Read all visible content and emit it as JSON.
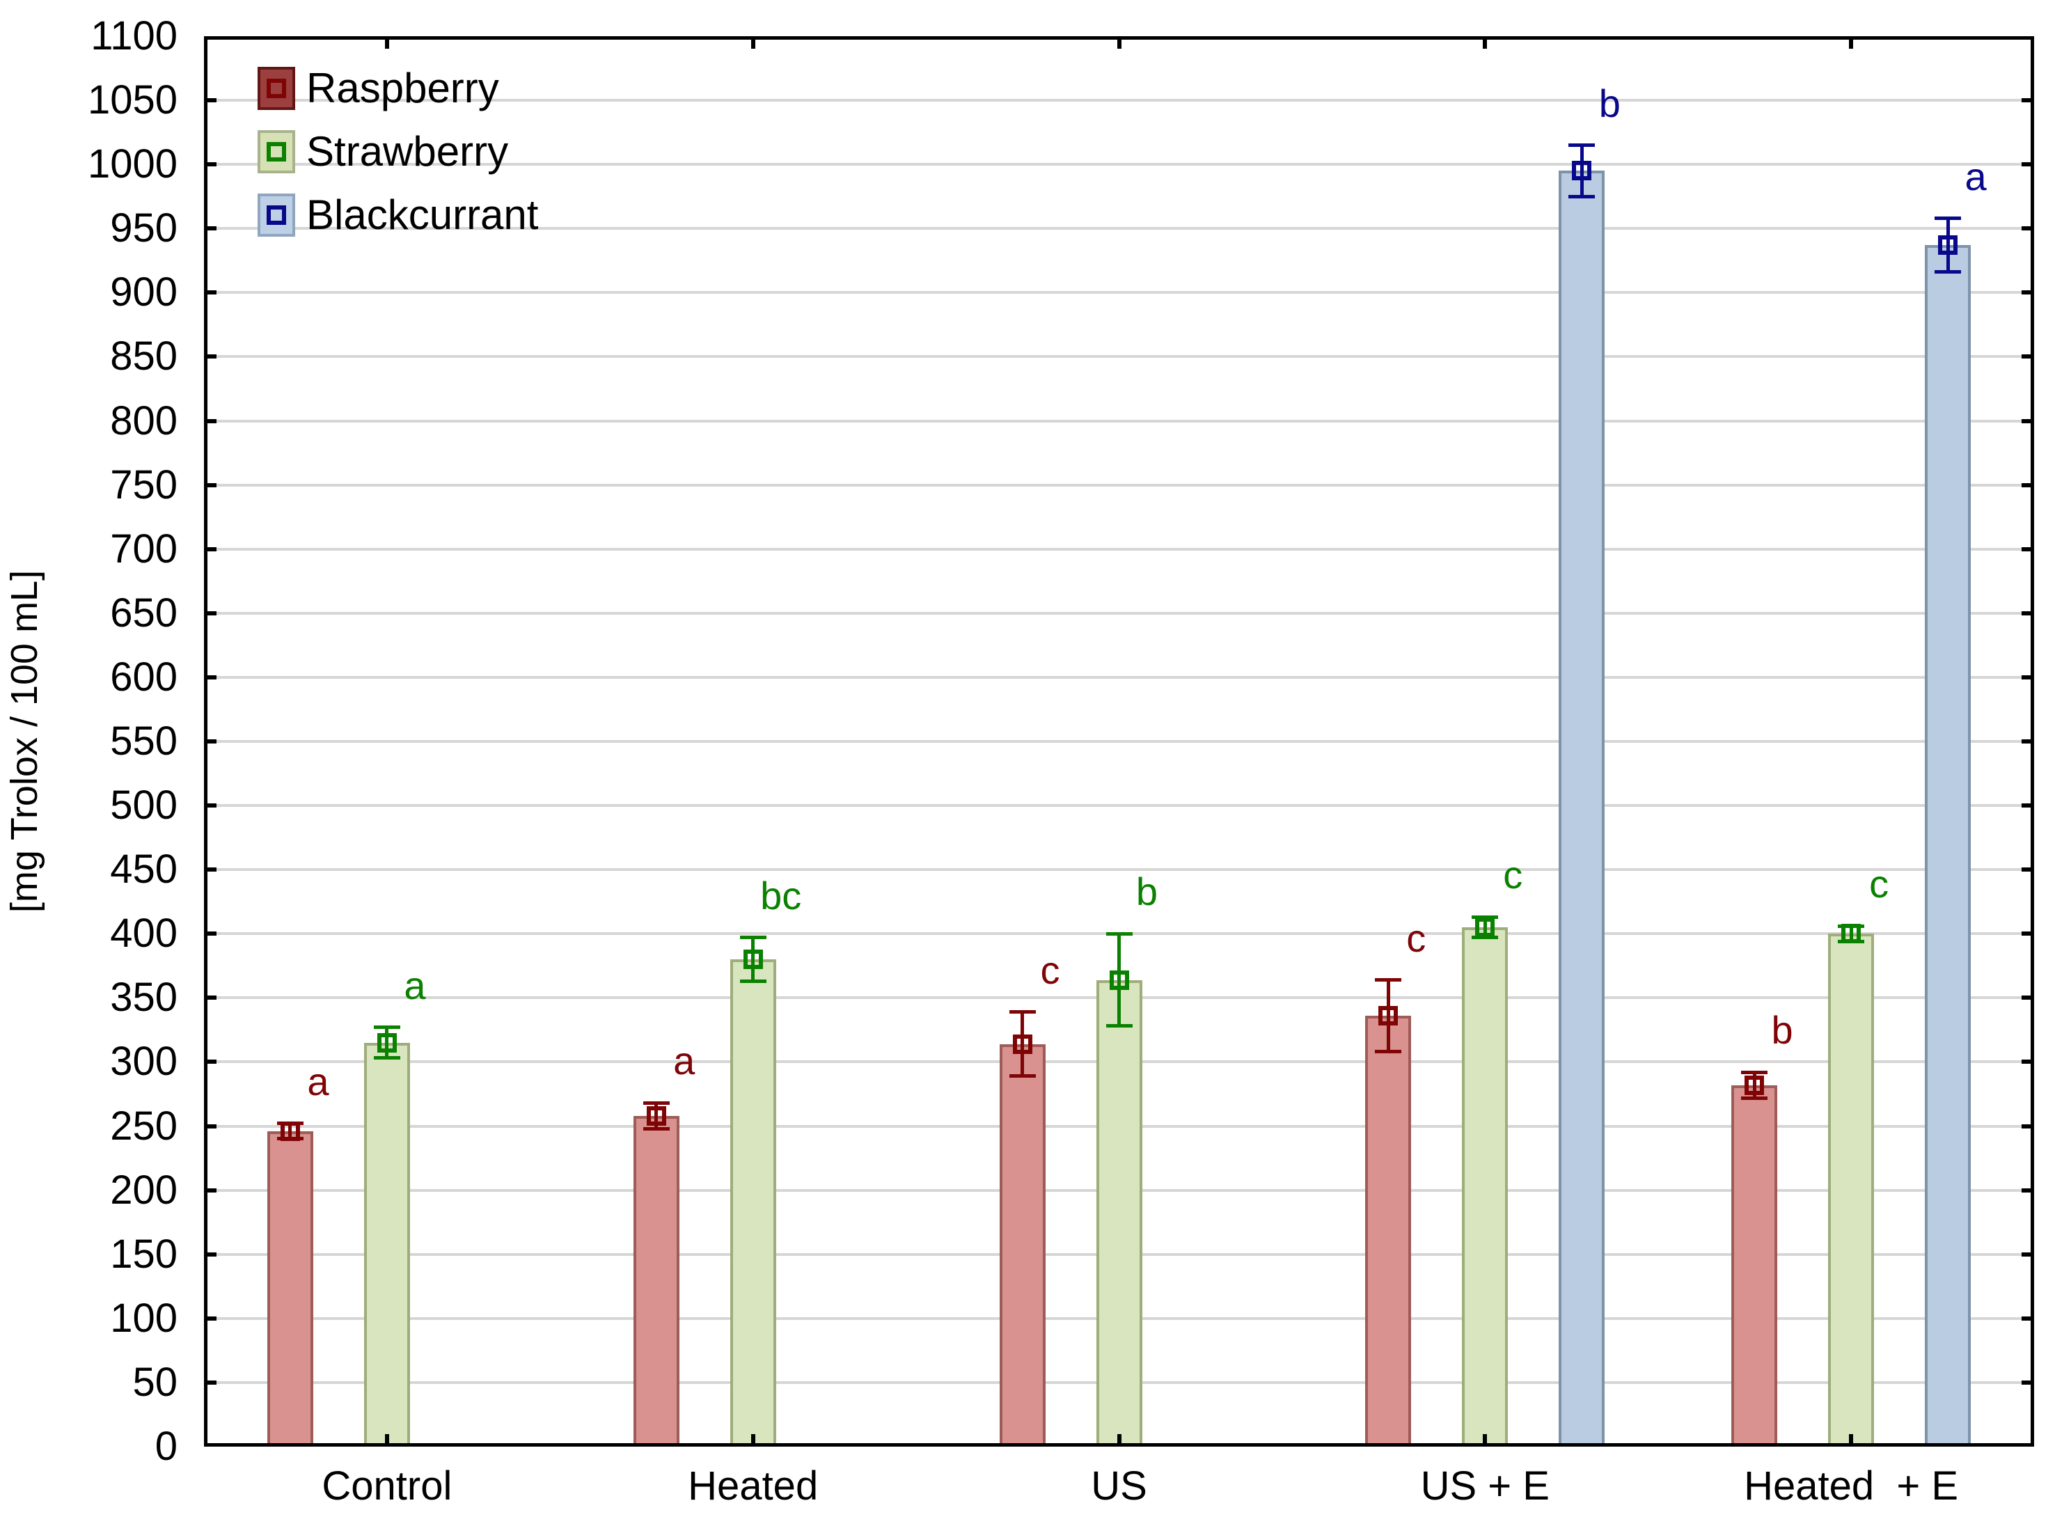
{
  "chart_data": {
    "type": "bar",
    "title": "",
    "xlabel": "",
    "ylabel": "[mg Trolox / 100 mL]",
    "ylim": [
      0,
      1100
    ],
    "ytick_step": 50,
    "yticks": [
      0,
      50,
      100,
      150,
      200,
      250,
      300,
      350,
      400,
      450,
      500,
      550,
      600,
      650,
      700,
      750,
      800,
      850,
      900,
      950,
      1000,
      1050,
      1100
    ],
    "grid": "horizontal",
    "legend_position": "top-left-inside",
    "categories": [
      "Control",
      "Heated",
      "US",
      "US + E",
      "Heated  + E"
    ],
    "series": [
      {
        "name": "Raspberry",
        "values": [
          246,
          258,
          314,
          336,
          282
        ],
        "errors": [
          6,
          10,
          25,
          28,
          10
        ],
        "sig_letters": [
          "a",
          "a",
          "c",
          "c",
          "b"
        ],
        "bar_fill": "#D9928F",
        "bar_border": "#9E5C58",
        "accent": "#7E0406",
        "legend_fill": "#9B403E",
        "legend_border": "#601716"
      },
      {
        "name": "Strawberry",
        "values": [
          315,
          380,
          364,
          405,
          400
        ],
        "errors": [
          12,
          17,
          36,
          8,
          6
        ],
        "sig_letters": [
          "a",
          "bc",
          "b",
          "c",
          "c"
        ],
        "bar_fill": "#D9E5BE",
        "bar_border": "#9EAD7B",
        "accent": "#0A8100",
        "legend_fill": "#D6E2B6",
        "legend_border": "#A9B28C"
      },
      {
        "name": "Blackcurrant",
        "values": [
          null,
          null,
          null,
          995,
          937
        ],
        "errors": [
          null,
          null,
          null,
          20,
          21
        ],
        "sig_letters": [
          null,
          null,
          null,
          "b",
          "a"
        ],
        "bar_fill": "#B9CCE1",
        "bar_border": "#7E93AA",
        "accent": "#08088B",
        "legend_fill": "#BDD0E6",
        "legend_border": "#90A6BE"
      }
    ],
    "axis_color": "#000000",
    "gridline_color": "#D6D6D6",
    "tick_label_color": "#000000"
  }
}
